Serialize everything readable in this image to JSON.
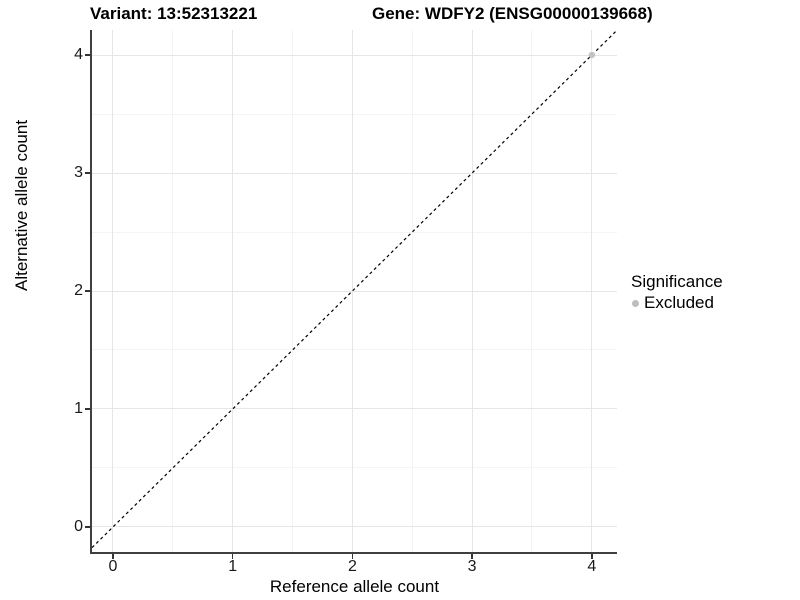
{
  "chart_data": {
    "type": "scatter",
    "title_variant": "Variant: 13:52313221",
    "title_gene": "Gene: WDFY2 (ENSG00000139668)",
    "xlabel": "Reference allele count",
    "ylabel": "Alternative allele count",
    "x_ticks": [
      0,
      1,
      2,
      3,
      4
    ],
    "y_ticks": [
      0,
      1,
      2,
      3,
      4
    ],
    "xlim": [
      -0.175,
      4.21
    ],
    "ylim": [
      -0.212,
      4.212
    ],
    "grid": {
      "major_color": "#e6e6e6",
      "minor_color": "#f4f4f4",
      "minor_step": 0.5,
      "grid_on": true
    },
    "identity_line": {
      "equation": "y = x",
      "style": "dashed",
      "color": "#000000"
    },
    "series": [
      {
        "name": "Excluded",
        "color": "#c3c3c3",
        "points": [
          {
            "x": 4,
            "y": 4
          }
        ]
      }
    ],
    "legend": {
      "title": "Significance",
      "position": "right",
      "entries": [
        {
          "label": "Excluded",
          "color": "#bdbdbd"
        }
      ]
    }
  }
}
